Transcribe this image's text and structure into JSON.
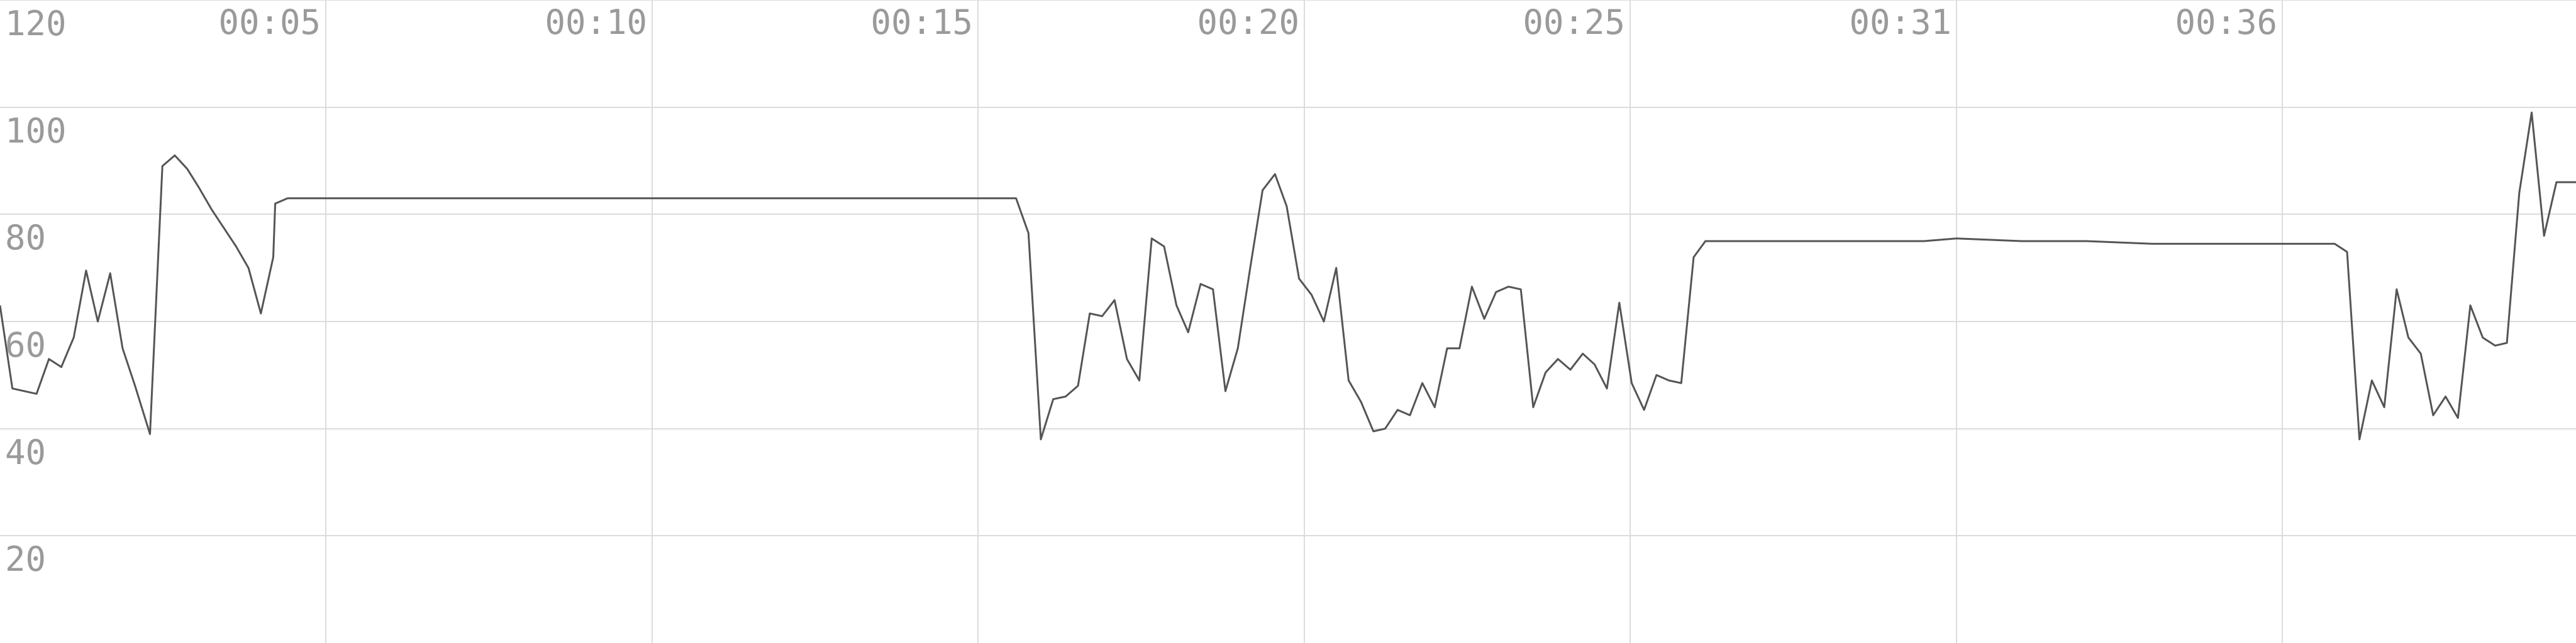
{
  "chart_data": {
    "type": "line",
    "title": "",
    "xlabel": "",
    "ylabel": "",
    "ylim": [
      0,
      120
    ],
    "xlim_seconds": [
      0,
      39.5
    ],
    "x_ticks": [
      {
        "label": "00:05",
        "t": 5
      },
      {
        "label": "00:10",
        "t": 10
      },
      {
        "label": "00:15",
        "t": 15
      },
      {
        "label": "00:20",
        "t": 20
      },
      {
        "label": "00:25",
        "t": 25
      },
      {
        "label": "00:31",
        "t": 30
      },
      {
        "label": "00:36",
        "t": 35
      }
    ],
    "y_ticks": [
      120,
      100,
      80,
      60,
      40,
      20
    ],
    "grid": true,
    "colors": {
      "line": "#555555",
      "grid": "#dcdcdc",
      "tick_text": "#9a9a9a"
    },
    "series": [
      {
        "values": [
          [
            0.0,
            63
          ],
          [
            0.19,
            47.5
          ],
          [
            0.56,
            46.5
          ],
          [
            0.75,
            53
          ],
          [
            0.94,
            51.5
          ],
          [
            1.13,
            57
          ],
          [
            1.32,
            69.5
          ],
          [
            1.5,
            60
          ],
          [
            1.69,
            69
          ],
          [
            1.88,
            55
          ],
          [
            2.07,
            48
          ],
          [
            2.3,
            39
          ],
          [
            2.49,
            89
          ],
          [
            2.68,
            91
          ],
          [
            2.87,
            88.5
          ],
          [
            3.05,
            85
          ],
          [
            3.24,
            81
          ],
          [
            3.43,
            77.5
          ],
          [
            3.62,
            74
          ],
          [
            3.81,
            70
          ],
          [
            4.0,
            61.5
          ],
          [
            4.19,
            72
          ],
          [
            4.22,
            82
          ],
          [
            4.41,
            83
          ],
          [
            4.6,
            83
          ],
          [
            6.0,
            83
          ],
          [
            9.0,
            83
          ],
          [
            12.0,
            83
          ],
          [
            14.0,
            83
          ],
          [
            15.58,
            83
          ],
          [
            15.77,
            76.5
          ],
          [
            15.96,
            38
          ],
          [
            16.15,
            45.5
          ],
          [
            16.34,
            46
          ],
          [
            16.53,
            48
          ],
          [
            16.71,
            61.5
          ],
          [
            16.9,
            61
          ],
          [
            17.09,
            64
          ],
          [
            17.28,
            53
          ],
          [
            17.47,
            49
          ],
          [
            17.66,
            75.5
          ],
          [
            17.85,
            74
          ],
          [
            18.04,
            63
          ],
          [
            18.22,
            58
          ],
          [
            18.41,
            67
          ],
          [
            18.6,
            66
          ],
          [
            18.79,
            47
          ],
          [
            18.98,
            55
          ],
          [
            19.17,
            70
          ],
          [
            19.36,
            84.5
          ],
          [
            19.55,
            87.5
          ],
          [
            19.73,
            81.5
          ],
          [
            19.92,
            68
          ],
          [
            20.11,
            65
          ],
          [
            20.3,
            60
          ],
          [
            20.49,
            70
          ],
          [
            20.68,
            49
          ],
          [
            20.87,
            45
          ],
          [
            21.06,
            39.5
          ],
          [
            21.24,
            40
          ],
          [
            21.43,
            43.5
          ],
          [
            21.62,
            42.5
          ],
          [
            21.81,
            48.5
          ],
          [
            22.0,
            44
          ],
          [
            22.19,
            55
          ],
          [
            22.38,
            55
          ],
          [
            22.57,
            66.5
          ],
          [
            22.76,
            60.5
          ],
          [
            22.94,
            65.5
          ],
          [
            23.13,
            66.5
          ],
          [
            23.32,
            66
          ],
          [
            23.51,
            44
          ],
          [
            23.7,
            50.5
          ],
          [
            23.89,
            53
          ],
          [
            24.08,
            51
          ],
          [
            24.27,
            54
          ],
          [
            24.45,
            52
          ],
          [
            24.64,
            47.5
          ],
          [
            24.83,
            63.5
          ],
          [
            25.02,
            48.5
          ],
          [
            25.21,
            43.5
          ],
          [
            25.4,
            50
          ],
          [
            25.59,
            49
          ],
          [
            25.78,
            48.5
          ],
          [
            25.97,
            72
          ],
          [
            26.15,
            75
          ],
          [
            26.34,
            75
          ],
          [
            27.0,
            75
          ],
          [
            28.0,
            75
          ],
          [
            29.0,
            75
          ],
          [
            29.5,
            75
          ],
          [
            30.0,
            75.5
          ],
          [
            31.0,
            75
          ],
          [
            32.0,
            75
          ],
          [
            33.0,
            74.5
          ],
          [
            34.0,
            74.5
          ],
          [
            35.0,
            74.5
          ],
          [
            35.8,
            74.5
          ],
          [
            35.99,
            73
          ],
          [
            36.18,
            38
          ],
          [
            36.37,
            49
          ],
          [
            36.56,
            44
          ],
          [
            36.75,
            66
          ],
          [
            36.93,
            57
          ],
          [
            37.12,
            54
          ],
          [
            37.31,
            42.5
          ],
          [
            37.5,
            46
          ],
          [
            37.69,
            42
          ],
          [
            37.88,
            63
          ],
          [
            38.07,
            57
          ],
          [
            38.26,
            55.5
          ],
          [
            38.44,
            56
          ],
          [
            38.63,
            84
          ],
          [
            38.82,
            99
          ],
          [
            39.01,
            76
          ],
          [
            39.2,
            86
          ],
          [
            39.5,
            86
          ]
        ]
      }
    ]
  }
}
